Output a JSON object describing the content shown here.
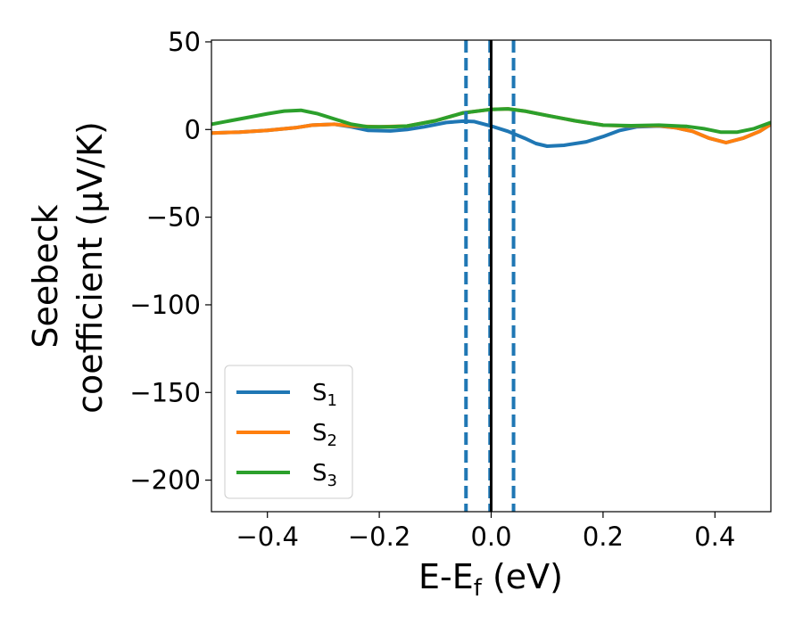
{
  "chart_data": {
    "type": "line",
    "xlabel_main": "E-E",
    "xlabel_sub": "f",
    "xlabel_unit": " (eV)",
    "ylabel_line1": "Seebeck",
    "ylabel_line2": "coefficient  (μV/K)",
    "xlim": [
      -0.5,
      0.5
    ],
    "ylim": [
      -218,
      51
    ],
    "xticks": [
      -0.4,
      -0.2,
      0.0,
      0.2,
      0.4
    ],
    "xtick_labels": [
      "−0.4",
      "−0.2",
      "0.0",
      "0.2",
      "0.4"
    ],
    "yticks": [
      50,
      0,
      -50,
      -100,
      -150,
      -200
    ],
    "ytick_labels": [
      "50",
      "0",
      "−50",
      "−100",
      "−150",
      "−200"
    ],
    "grid": false,
    "legend_position": "lower-left",
    "vlines": [
      {
        "x": -0.045,
        "style": "dashed",
        "color": "#1f77b4"
      },
      {
        "x": -0.002,
        "style": "dashed",
        "color": "#1f77b4"
      },
      {
        "x": 0.0,
        "style": "solid",
        "color": "#000000"
      },
      {
        "x": 0.04,
        "style": "dashed",
        "color": "#1f77b4"
      }
    ],
    "series": [
      {
        "name": "S",
        "sub": "1",
        "color": "#1f77b4",
        "points": [
          [
            -0.5,
            -2
          ],
          [
            -0.45,
            -1.5
          ],
          [
            -0.4,
            -0.5
          ],
          [
            -0.35,
            1
          ],
          [
            -0.32,
            2.5
          ],
          [
            -0.28,
            3
          ],
          [
            -0.25,
            1.5
          ],
          [
            -0.22,
            -0.5
          ],
          [
            -0.18,
            -0.8
          ],
          [
            -0.15,
            0
          ],
          [
            -0.12,
            1.5
          ],
          [
            -0.08,
            4
          ],
          [
            -0.05,
            4.8
          ],
          [
            -0.03,
            4.5
          ],
          [
            0.0,
            2
          ],
          [
            0.03,
            -1
          ],
          [
            0.06,
            -5
          ],
          [
            0.08,
            -8
          ],
          [
            0.1,
            -9.5
          ],
          [
            0.13,
            -9
          ],
          [
            0.17,
            -7
          ],
          [
            0.2,
            -4
          ],
          [
            0.23,
            -0.5
          ],
          [
            0.26,
            1.5
          ],
          [
            0.3,
            2
          ],
          [
            0.33,
            1
          ],
          [
            0.36,
            -1
          ],
          [
            0.39,
            -5
          ],
          [
            0.42,
            -7.5
          ],
          [
            0.45,
            -5
          ],
          [
            0.48,
            -1
          ],
          [
            0.5,
            3
          ]
        ]
      },
      {
        "name": "S",
        "sub": "2",
        "color": "#ff7f0e",
        "points": [
          [
            -0.5,
            -2
          ],
          [
            -0.45,
            -1.5
          ],
          [
            -0.4,
            -0.5
          ],
          [
            -0.35,
            1
          ],
          [
            -0.32,
            2.5
          ],
          [
            -0.28,
            3
          ],
          [
            -0.25,
            2
          ],
          [
            -0.2,
            1.5
          ],
          [
            -0.15,
            2
          ],
          [
            -0.1,
            5
          ],
          [
            -0.05,
            9.5
          ],
          [
            0.0,
            11.5
          ],
          [
            0.03,
            11.8
          ],
          [
            0.06,
            10.5
          ],
          [
            0.1,
            8
          ],
          [
            0.15,
            5
          ],
          [
            0.2,
            2.5
          ],
          [
            0.25,
            2
          ],
          [
            0.3,
            2.2
          ],
          [
            0.33,
            1
          ],
          [
            0.36,
            -1
          ],
          [
            0.39,
            -5
          ],
          [
            0.42,
            -7.5
          ],
          [
            0.45,
            -5
          ],
          [
            0.48,
            -1
          ],
          [
            0.5,
            3
          ]
        ]
      },
      {
        "name": "S",
        "sub": "3",
        "color": "#2ca02c",
        "points": [
          [
            -0.5,
            3
          ],
          [
            -0.45,
            6
          ],
          [
            -0.4,
            9
          ],
          [
            -0.37,
            10.5
          ],
          [
            -0.34,
            11
          ],
          [
            -0.31,
            9
          ],
          [
            -0.28,
            6
          ],
          [
            -0.25,
            3
          ],
          [
            -0.22,
            1.5
          ],
          [
            -0.18,
            1.5
          ],
          [
            -0.15,
            2
          ],
          [
            -0.1,
            5
          ],
          [
            -0.05,
            9.5
          ],
          [
            0.0,
            11.5
          ],
          [
            0.03,
            11.8
          ],
          [
            0.06,
            10.5
          ],
          [
            0.1,
            8
          ],
          [
            0.15,
            5
          ],
          [
            0.2,
            2.5
          ],
          [
            0.25,
            2.2
          ],
          [
            0.3,
            2.5
          ],
          [
            0.35,
            1.8
          ],
          [
            0.38,
            0.5
          ],
          [
            0.41,
            -1.5
          ],
          [
            0.44,
            -1.5
          ],
          [
            0.47,
            0.5
          ],
          [
            0.5,
            4
          ]
        ]
      }
    ]
  }
}
